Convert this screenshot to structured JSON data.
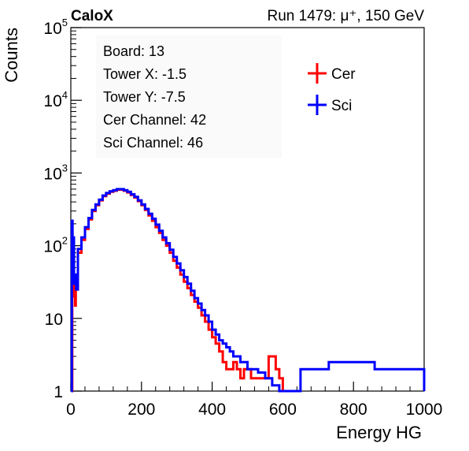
{
  "chart_data": {
    "type": "line",
    "header_left": "CaloX",
    "header_right": "Run 1479:   μ⁺, 150 GeV",
    "xlabel": "Energy HG",
    "ylabel": "Counts",
    "xlim": [
      0,
      1000
    ],
    "ylim": [
      1,
      100000
    ],
    "yscale": "log",
    "grid": false,
    "legend_position": "top-right",
    "x_ticks": [
      0,
      200,
      400,
      600,
      800,
      1000
    ],
    "y_ticks": [
      {
        "value": 1,
        "base": "1",
        "exp": ""
      },
      {
        "value": 10,
        "base": "10",
        "exp": ""
      },
      {
        "value": 100,
        "base": "10",
        "exp": "2"
      },
      {
        "value": 1000,
        "base": "10",
        "exp": "3"
      },
      {
        "value": 10000,
        "base": "10",
        "exp": "4"
      },
      {
        "value": 100000,
        "base": "10",
        "exp": "5"
      }
    ],
    "info_lines": [
      "Board: 13",
      "Tower X: -1.5",
      "Tower Y: -7.5",
      "Cer Channel: 42",
      "Sci Channel: 46"
    ],
    "series": [
      {
        "name": "Cer",
        "color": "#ff0000",
        "points": [
          [
            2,
            1
          ],
          [
            4,
            60
          ],
          [
            5,
            25
          ],
          [
            6,
            100
          ],
          [
            8,
            40
          ],
          [
            10,
            20
          ],
          [
            12,
            15
          ],
          [
            14,
            25
          ],
          [
            20,
            80
          ],
          [
            30,
            120
          ],
          [
            40,
            170
          ],
          [
            50,
            230
          ],
          [
            60,
            300
          ],
          [
            70,
            360
          ],
          [
            80,
            420
          ],
          [
            90,
            480
          ],
          [
            100,
            520
          ],
          [
            110,
            550
          ],
          [
            120,
            570
          ],
          [
            130,
            590
          ],
          [
            140,
            590
          ],
          [
            150,
            570
          ],
          [
            160,
            540
          ],
          [
            170,
            500
          ],
          [
            180,
            460
          ],
          [
            190,
            410
          ],
          [
            200,
            360
          ],
          [
            210,
            310
          ],
          [
            220,
            260
          ],
          [
            230,
            220
          ],
          [
            240,
            180
          ],
          [
            250,
            150
          ],
          [
            260,
            120
          ],
          [
            270,
            100
          ],
          [
            280,
            80
          ],
          [
            290,
            62
          ],
          [
            300,
            50
          ],
          [
            310,
            40
          ],
          [
            320,
            32
          ],
          [
            330,
            26
          ],
          [
            340,
            21
          ],
          [
            350,
            17
          ],
          [
            360,
            14
          ],
          [
            370,
            11
          ],
          [
            380,
            9
          ],
          [
            390,
            7
          ],
          [
            400,
            5.5
          ],
          [
            410,
            4.5
          ],
          [
            420,
            3.5
          ],
          [
            430,
            2.5
          ],
          [
            440,
            2
          ],
          [
            450,
            2
          ],
          [
            460,
            2.5
          ],
          [
            470,
            2
          ],
          [
            480,
            1.5
          ],
          [
            490,
            2
          ],
          [
            500,
            2
          ],
          [
            510,
            1.5
          ],
          [
            520,
            1.5
          ],
          [
            530,
            1.5
          ],
          [
            540,
            1.5
          ],
          [
            560,
            3
          ],
          [
            580,
            2
          ],
          [
            590,
            1.5
          ],
          [
            600,
            1
          ]
        ]
      },
      {
        "name": "Sci",
        "color": "#0000ff",
        "points": [
          [
            1,
            1
          ],
          [
            3,
            220
          ],
          [
            5,
            40
          ],
          [
            7,
            130
          ],
          [
            9,
            30
          ],
          [
            11,
            40
          ],
          [
            15,
            25
          ],
          [
            20,
            90
          ],
          [
            30,
            130
          ],
          [
            40,
            180
          ],
          [
            50,
            240
          ],
          [
            60,
            310
          ],
          [
            70,
            370
          ],
          [
            80,
            430
          ],
          [
            90,
            490
          ],
          [
            100,
            530
          ],
          [
            110,
            560
          ],
          [
            120,
            580
          ],
          [
            130,
            600
          ],
          [
            140,
            600
          ],
          [
            150,
            580
          ],
          [
            160,
            550
          ],
          [
            170,
            510
          ],
          [
            180,
            470
          ],
          [
            190,
            420
          ],
          [
            200,
            370
          ],
          [
            210,
            320
          ],
          [
            220,
            275
          ],
          [
            230,
            235
          ],
          [
            240,
            195
          ],
          [
            250,
            160
          ],
          [
            260,
            130
          ],
          [
            270,
            108
          ],
          [
            280,
            88
          ],
          [
            290,
            70
          ],
          [
            300,
            57
          ],
          [
            310,
            46
          ],
          [
            320,
            37
          ],
          [
            330,
            30
          ],
          [
            340,
            24
          ],
          [
            350,
            19
          ],
          [
            360,
            16
          ],
          [
            370,
            13
          ],
          [
            380,
            11
          ],
          [
            390,
            9
          ],
          [
            400,
            7
          ],
          [
            410,
            6
          ],
          [
            420,
            5
          ],
          [
            430,
            4.5
          ],
          [
            440,
            4
          ],
          [
            450,
            3.5
          ],
          [
            460,
            3
          ],
          [
            470,
            3
          ],
          [
            480,
            2.5
          ],
          [
            490,
            2.5
          ],
          [
            500,
            2
          ],
          [
            510,
            2
          ],
          [
            520,
            2
          ],
          [
            530,
            1.8
          ],
          [
            540,
            1.8
          ],
          [
            550,
            1.5
          ],
          [
            560,
            1.5
          ],
          [
            570,
            1.2
          ],
          [
            580,
            1.2
          ],
          [
            590,
            1
          ],
          [
            600,
            1
          ],
          [
            650,
            2
          ],
          [
            730,
            2.5
          ],
          [
            860,
            2
          ],
          [
            890,
            2
          ],
          [
            1000,
            1
          ]
        ]
      }
    ]
  }
}
